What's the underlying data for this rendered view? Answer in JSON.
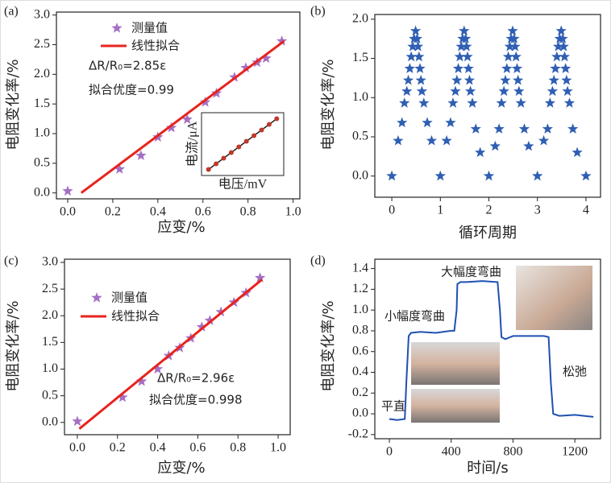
{
  "chart_data": [
    {
      "type": "scatter",
      "panel_label": "(a)",
      "xlabel": "应变/%",
      "ylabel": "电阻变化率/%",
      "xlim": [
        -0.05,
        1.03
      ],
      "ylim": [
        -0.1,
        3.05
      ],
      "xticks": [
        {
          "value": 0,
          "label": "0.0"
        },
        0.2,
        0.4,
        0.6,
        0.8,
        {
          "value": 1,
          "label": "1.0"
        }
      ],
      "yticks": [
        {
          "value": 0,
          "label": "0.0"
        },
        0.5,
        {
          "value": 1,
          "label": "1.0"
        },
        1.5,
        {
          "value": 2,
          "label": "2.0"
        },
        2.5,
        {
          "value": 3,
          "label": "3.0"
        }
      ],
      "legend": true,
      "series": [
        {
          "name": "测量值",
          "mode": "markers",
          "color": "#a46fc4",
          "x": [
            0,
            0.23,
            0.325,
            0.4,
            0.46,
            0.53,
            0.61,
            0.66,
            0.74,
            0.79,
            0.84,
            0.88,
            0.95
          ],
          "values": [
            0.03,
            0.4,
            0.63,
            0.94,
            1.1,
            1.24,
            1.53,
            1.68,
            1.95,
            2.11,
            2.2,
            2.27,
            2.56
          ]
        },
        {
          "name": "线性拟合",
          "mode": "lines",
          "color": "#e8231d",
          "x": [
            0.06,
            0.96
          ],
          "values": [
            0,
            2.56
          ]
        }
      ],
      "annotations": [
        "ΔR/R₀=2.85ε",
        "拟合优度=0.99"
      ],
      "annotation_color": "#3b3b8f",
      "inset": {
        "xlabel": "电压/mV",
        "ylabel": "电流/μA",
        "x": [
          0.05,
          0.15,
          0.25,
          0.35,
          0.45,
          0.55,
          0.65,
          0.75,
          0.85,
          0.95
        ],
        "values": [
          0.05,
          0.15,
          0.25,
          0.35,
          0.45,
          0.55,
          0.65,
          0.75,
          0.85,
          0.95
        ],
        "color": "#c0392b"
      }
    },
    {
      "type": "scatter",
      "panel_label": "(b)",
      "xlabel": "循环周期",
      "ylabel": "电阻变化率/%",
      "xlim": [
        -0.35,
        4.3
      ],
      "ylim": [
        -0.27,
        2.06
      ],
      "xticks": [
        0,
        1,
        2,
        3,
        4
      ],
      "yticks": [
        {
          "value": 0,
          "label": "0.0"
        },
        0.5,
        {
          "value": 1,
          "label": "1.0"
        },
        1.5,
        {
          "value": 2,
          "label": "2.0"
        }
      ],
      "legend": false,
      "series": [
        {
          "mode": "markers",
          "color": "#2f5fb3",
          "x": [
            0,
            0.13,
            0.21,
            0.26,
            0.31,
            0.34,
            0.37,
            0.4,
            0.43,
            0.46,
            0.49,
            0.52,
            0.54,
            0.56,
            0.58,
            0.6,
            0.62,
            0.66,
            0.73,
            0.82,
            1,
            1.13,
            1.21,
            1.26,
            1.31,
            1.34,
            1.37,
            1.4,
            1.43,
            1.46,
            1.49,
            1.52,
            1.54,
            1.56,
            1.58,
            1.6,
            1.62,
            1.66,
            1.73,
            1.82,
            2,
            2.13,
            2.21,
            2.26,
            2.31,
            2.34,
            2.37,
            2.4,
            2.43,
            2.46,
            2.49,
            2.52,
            2.54,
            2.56,
            2.58,
            2.6,
            2.62,
            2.66,
            2.73,
            2.82,
            3,
            3.13,
            3.21,
            3.26,
            3.31,
            3.34,
            3.37,
            3.4,
            3.43,
            3.46,
            3.49,
            3.52,
            3.54,
            3.56,
            3.58,
            3.6,
            3.62,
            3.66,
            3.73,
            3.82,
            4
          ],
          "values": [
            0,
            0.45,
            0.68,
            0.93,
            1.08,
            1.22,
            1.37,
            1.52,
            1.65,
            1.75,
            1.85,
            1.75,
            1.65,
            1.52,
            1.37,
            1.22,
            1.08,
            0.93,
            0.68,
            0.45,
            0,
            0.45,
            0.68,
            0.93,
            1.08,
            1.22,
            1.37,
            1.52,
            1.65,
            1.75,
            1.85,
            1.75,
            1.65,
            1.52,
            1.37,
            1.22,
            1.08,
            0.93,
            0.6,
            0.3,
            0,
            0.38,
            0.6,
            0.93,
            1.08,
            1.22,
            1.37,
            1.52,
            1.65,
            1.75,
            1.85,
            1.75,
            1.65,
            1.52,
            1.37,
            1.22,
            1.08,
            0.93,
            0.6,
            0.38,
            0,
            0.45,
            0.6,
            0.93,
            1.08,
            1.22,
            1.37,
            1.52,
            1.65,
            1.75,
            1.85,
            1.75,
            1.65,
            1.52,
            1.37,
            1.22,
            1.08,
            0.93,
            0.6,
            0.3,
            0
          ]
        }
      ],
      "annotations": []
    },
    {
      "type": "scatter",
      "panel_label": "(c)",
      "xlabel": "应变/%",
      "ylabel": "电阻变化率/%",
      "xlim": [
        -0.064,
        1.06
      ],
      "ylim": [
        -0.23,
        3.06
      ],
      "xticks": [
        {
          "value": 0,
          "label": "0.0"
        },
        0.2,
        0.4,
        0.6,
        0.8,
        {
          "value": 1,
          "label": "1.0"
        }
      ],
      "yticks": [
        {
          "value": 0,
          "label": "0.0"
        },
        0.5,
        {
          "value": 1,
          "label": "1.0"
        },
        1.5,
        {
          "value": 2,
          "label": "2.0"
        },
        2.5,
        {
          "value": 3,
          "label": "3.0"
        }
      ],
      "legend": true,
      "series": [
        {
          "name": "测量值",
          "mode": "markers",
          "color": "#a46fc4",
          "x": [
            0,
            0.225,
            0.32,
            0.4,
            0.455,
            0.51,
            0.565,
            0.62,
            0.66,
            0.715,
            0.78,
            0.84,
            0.91
          ],
          "values": [
            0.02,
            0.47,
            0.77,
            1.0,
            1.25,
            1.4,
            1.58,
            1.79,
            1.91,
            2.07,
            2.25,
            2.43,
            2.71
          ]
        },
        {
          "name": "线性拟合",
          "mode": "lines",
          "color": "#e8231d",
          "x": [
            0.01,
            0.92
          ],
          "values": [
            -0.12,
            2.68
          ]
        }
      ],
      "annotations": [
        "ΔR/R₀=2.96ε",
        "拟合优度=0.998"
      ],
      "annotation_color": "#3b3b8f"
    },
    {
      "type": "line",
      "panel_label": "(d)",
      "xlabel": "时间/s",
      "ylabel": "电阻变化率/%",
      "xlim": [
        -94,
        1366
      ],
      "ylim": [
        -0.24,
        1.49
      ],
      "xticks": [
        0,
        400,
        800,
        1200
      ],
      "yticks": [
        -0.2,
        {
          "value": 0,
          "label": "0.0"
        },
        0.2,
        0.4,
        0.6,
        0.8,
        {
          "value": 1,
          "label": "1.0"
        },
        1.2,
        1.4
      ],
      "legend": false,
      "series": [
        {
          "mode": "lines",
          "color": "#2050b0",
          "x": [
            0,
            50,
            100,
            110,
            125,
            140,
            200,
            300,
            400,
            420,
            435,
            440,
            460,
            500,
            600,
            700,
            715,
            725,
            750,
            800,
            900,
            1000,
            1030,
            1045,
            1060,
            1100,
            1200,
            1320
          ],
          "values": [
            -0.05,
            -0.06,
            -0.05,
            0.3,
            0.75,
            0.78,
            0.79,
            0.78,
            0.8,
            0.8,
            1.0,
            1.25,
            1.27,
            1.27,
            1.28,
            1.27,
            1.0,
            0.74,
            0.72,
            0.75,
            0.75,
            0.75,
            0.74,
            0.3,
            0.0,
            -0.02,
            -0.01,
            -0.03
          ]
        }
      ],
      "annotations": [
        "大幅度弯曲",
        "小幅度弯曲",
        "松弛",
        "平直"
      ],
      "annotation_color": "#111111"
    }
  ]
}
